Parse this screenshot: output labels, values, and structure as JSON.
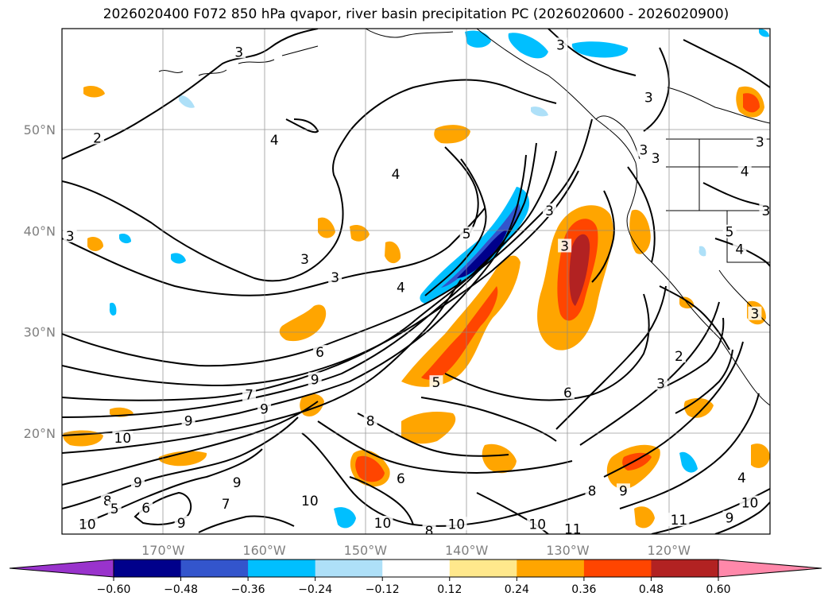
{
  "title": "2026020400 F072 850 hPa qvapor, river basin precipitation PC (2026020600 - 2026020900)",
  "chart_data": {
    "type": "contour-map",
    "title": "2026020400 F072 850 hPa qvapor, river basin precipitation PC (2026020600 - 2026020900)",
    "lon_range": [
      -180,
      -110
    ],
    "lat_range": [
      10,
      60
    ],
    "lon_ticks": [
      -170,
      -160,
      -150,
      -140,
      -130,
      -120
    ],
    "lon_tick_labels": [
      "170°W",
      "160°W",
      "150°W",
      "140°W",
      "130°W",
      "120°W"
    ],
    "lat_ticks": [
      20,
      30,
      40,
      50
    ],
    "lat_tick_labels": [
      "20°N",
      "30°N",
      "40°N",
      "50°N"
    ],
    "grid": true,
    "colorbar": {
      "orientation": "horizontal",
      "extend": "both",
      "levels": [
        -0.6,
        -0.48,
        -0.36,
        -0.24,
        -0.12,
        0.12,
        0.24,
        0.36,
        0.48,
        0.6
      ],
      "tick_labels": [
        "−0.60",
        "−0.48",
        "−0.36",
        "−0.24",
        "−0.12",
        "0.12",
        "0.24",
        "0.36",
        "0.48",
        "0.60"
      ],
      "colors": [
        "#9933cc",
        "#00008b",
        "#3355cc",
        "#00bfff",
        "#aee0f8",
        "#ffffff",
        "#ffe88c",
        "#ffa500",
        "#ff4500",
        "#b22222",
        "#ff88aa"
      ]
    },
    "contour_labels": [
      {
        "lon": -162.5,
        "lat": 57.7,
        "text": "3"
      },
      {
        "lon": -176.5,
        "lat": 49.2,
        "text": "2"
      },
      {
        "lon": -179.2,
        "lat": 39.5,
        "text": "3"
      },
      {
        "lon": -159.0,
        "lat": 49.0,
        "text": "4"
      },
      {
        "lon": -147.0,
        "lat": 45.6,
        "text": "4"
      },
      {
        "lon": -156.0,
        "lat": 37.2,
        "text": "3"
      },
      {
        "lon": -153.0,
        "lat": 35.4,
        "text": "3"
      },
      {
        "lon": -146.5,
        "lat": 34.4,
        "text": "4"
      },
      {
        "lon": -140.0,
        "lat": 39.7,
        "text": "5"
      },
      {
        "lon": -154.5,
        "lat": 28.0,
        "text": "6"
      },
      {
        "lon": -155.0,
        "lat": 25.3,
        "text": "9"
      },
      {
        "lon": -161.5,
        "lat": 23.8,
        "text": "7"
      },
      {
        "lon": -167.5,
        "lat": 21.2,
        "text": "9"
      },
      {
        "lon": -174.0,
        "lat": 19.5,
        "text": "10"
      },
      {
        "lon": -160.0,
        "lat": 22.4,
        "text": "9"
      },
      {
        "lon": -149.5,
        "lat": 21.2,
        "text": "8"
      },
      {
        "lon": -143.0,
        "lat": 25.0,
        "text": "5"
      },
      {
        "lon": -130.0,
        "lat": 24.0,
        "text": "6"
      },
      {
        "lon": -146.5,
        "lat": 15.5,
        "text": "6"
      },
      {
        "lon": -155.5,
        "lat": 13.3,
        "text": "10"
      },
      {
        "lon": -141.0,
        "lat": 11.0,
        "text": "10"
      },
      {
        "lon": -148.3,
        "lat": 11.1,
        "text": "10"
      },
      {
        "lon": -133.0,
        "lat": 11.0,
        "text": "10"
      },
      {
        "lon": -129.5,
        "lat": 10.5,
        "text": "11"
      },
      {
        "lon": -119.0,
        "lat": 11.4,
        "text": "11"
      },
      {
        "lon": -143.7,
        "lat": 10.3,
        "text": "8"
      },
      {
        "lon": -172.5,
        "lat": 15.1,
        "text": "9"
      },
      {
        "lon": -168.2,
        "lat": 11.1,
        "text": "9"
      },
      {
        "lon": -162.7,
        "lat": 15.1,
        "text": "9"
      },
      {
        "lon": -175.5,
        "lat": 13.3,
        "text": "8"
      },
      {
        "lon": -174.8,
        "lat": 12.5,
        "text": "5"
      },
      {
        "lon": -171.7,
        "lat": 12.6,
        "text": "6"
      },
      {
        "lon": -163.8,
        "lat": 13.0,
        "text": "7"
      },
      {
        "lon": -177.5,
        "lat": 11.0,
        "text": "10"
      },
      {
        "lon": -124.5,
        "lat": 14.3,
        "text": "9"
      },
      {
        "lon": -127.6,
        "lat": 14.3,
        "text": "8"
      },
      {
        "lon": -120.8,
        "lat": 24.9,
        "text": "3"
      },
      {
        "lon": -119.0,
        "lat": 27.6,
        "text": "2"
      },
      {
        "lon": -122.5,
        "lat": 48.0,
        "text": "3"
      },
      {
        "lon": -131.8,
        "lat": 42.0,
        "text": "3"
      },
      {
        "lon": -130.3,
        "lat": 38.5,
        "text": "3"
      },
      {
        "lon": -112.5,
        "lat": 45.9,
        "text": "4"
      },
      {
        "lon": -114.0,
        "lat": 39.9,
        "text": "5"
      },
      {
        "lon": -113.0,
        "lat": 38.2,
        "text": "4"
      },
      {
        "lon": -121.3,
        "lat": 47.2,
        "text": "3"
      },
      {
        "lon": -122.0,
        "lat": 53.2,
        "text": "3"
      },
      {
        "lon": -112.8,
        "lat": 15.6,
        "text": "4"
      },
      {
        "lon": -112.0,
        "lat": 13.1,
        "text": "10"
      },
      {
        "lon": -114.0,
        "lat": 11.6,
        "text": "9"
      },
      {
        "lon": -111.5,
        "lat": 31.8,
        "text": "3"
      },
      {
        "lon": -111.0,
        "lat": 48.8,
        "text": "3"
      },
      {
        "lon": -110.4,
        "lat": 42.0,
        "text": "3"
      },
      {
        "lon": -130.7,
        "lat": 58.4,
        "text": "3"
      }
    ]
  }
}
